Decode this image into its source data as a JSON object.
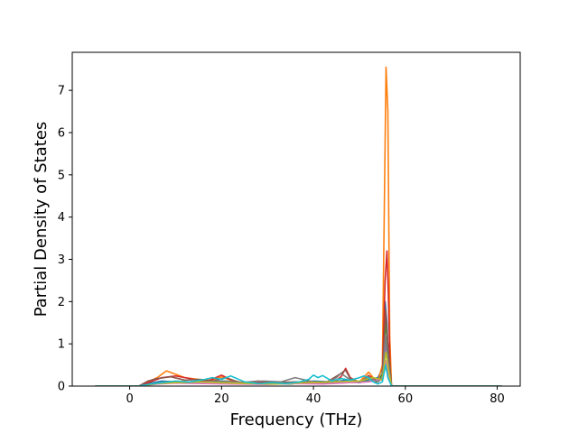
{
  "chart_data": {
    "type": "line",
    "xlabel": "Frequency (THz)",
    "ylabel": "Partial Density of States",
    "xlim": [
      -12.5,
      85
    ],
    "ylim": [
      0,
      7.9
    ],
    "x_ticks": [
      0,
      20,
      40,
      60,
      80
    ],
    "y_ticks": [
      0,
      1,
      2,
      3,
      4,
      5,
      6,
      7
    ],
    "grid": false,
    "series": [
      {
        "color": "#1f77b4",
        "x": [
          -7.5,
          2,
          4,
          7,
          10,
          14,
          18,
          21,
          25,
          30,
          35,
          40,
          44,
          47,
          50,
          52,
          54,
          55,
          55.6,
          56,
          56.4,
          57,
          60,
          81
        ],
        "y": [
          0,
          0,
          0.06,
          0.12,
          0.1,
          0.1,
          0.12,
          0.12,
          0.06,
          0.08,
          0.06,
          0.12,
          0.1,
          0.14,
          0.1,
          0.15,
          0.2,
          0.4,
          2.0,
          1.5,
          0.3,
          0,
          0,
          0
        ]
      },
      {
        "color": "#ff7f0e",
        "x": [
          -7.5,
          2,
          4,
          6,
          8,
          9,
          10,
          12,
          15,
          18,
          20,
          23,
          27,
          30,
          35,
          40,
          44,
          47,
          50,
          52,
          53,
          54,
          55,
          55.4,
          55.8,
          56.2,
          56.6,
          57,
          60,
          81
        ],
        "y": [
          0,
          0,
          0.1,
          0.2,
          0.36,
          0.32,
          0.28,
          0.2,
          0.16,
          0.14,
          0.22,
          0.1,
          0.08,
          0.08,
          0.06,
          0.08,
          0.06,
          0.1,
          0.1,
          0.33,
          0.2,
          0.1,
          0.5,
          4.0,
          7.55,
          6.5,
          1.2,
          0,
          0,
          0
        ]
      },
      {
        "color": "#2ca02c",
        "x": [
          -7.5,
          2,
          5,
          8,
          12,
          16,
          20,
          24,
          30,
          35,
          40,
          45,
          50,
          52,
          54,
          55,
          55.8,
          56.3,
          57,
          60,
          81
        ],
        "y": [
          0,
          0,
          0.05,
          0.1,
          0.08,
          0.14,
          0.1,
          0.06,
          0.06,
          0.05,
          0.1,
          0.08,
          0.1,
          0.12,
          0.1,
          0.3,
          1.5,
          0.8,
          0,
          0,
          0
        ]
      },
      {
        "color": "#d62728",
        "x": [
          -7.5,
          2,
          4,
          7,
          10,
          14,
          17,
          20,
          22,
          25,
          30,
          35,
          40,
          44,
          46,
          47,
          48,
          50,
          52,
          54,
          55,
          55.6,
          56,
          56.3,
          56.7,
          57,
          60,
          81
        ],
        "y": [
          0,
          0,
          0.08,
          0.2,
          0.24,
          0.16,
          0.12,
          0.26,
          0.15,
          0.06,
          0.1,
          0.06,
          0.08,
          0.06,
          0.22,
          0.42,
          0.2,
          0.08,
          0.25,
          0.1,
          0.2,
          2.5,
          3.2,
          2.2,
          0.3,
          0,
          0,
          0
        ]
      },
      {
        "color": "#9467bd",
        "x": [
          -7.5,
          2,
          6,
          10,
          14,
          18,
          22,
          28,
          34,
          40,
          45,
          50,
          53,
          55,
          55.8,
          56.3,
          57,
          60,
          81
        ],
        "y": [
          0,
          0,
          0.06,
          0.08,
          0.1,
          0.08,
          0.06,
          0.05,
          0.06,
          0.08,
          0.1,
          0.08,
          0.12,
          0.2,
          1.0,
          0.5,
          0,
          0,
          0
        ]
      },
      {
        "color": "#8c564b",
        "x": [
          -7.5,
          2,
          4,
          6,
          9,
          12,
          15,
          18,
          21,
          24,
          28,
          32,
          36,
          40,
          43,
          46,
          47,
          48,
          50,
          52,
          54,
          55,
          55.7,
          56.2,
          57,
          60,
          81
        ],
        "y": [
          0,
          0,
          0.12,
          0.18,
          0.22,
          0.14,
          0.16,
          0.12,
          0.2,
          0.08,
          0.12,
          0.08,
          0.1,
          0.08,
          0.1,
          0.3,
          0.38,
          0.18,
          0.1,
          0.2,
          0.1,
          0.2,
          1.8,
          1.0,
          0,
          0,
          0
        ]
      },
      {
        "color": "#e377c2",
        "x": [
          -7.5,
          2,
          6,
          10,
          16,
          22,
          30,
          36,
          42,
          48,
          52,
          55,
          55.8,
          56.3,
          57,
          60,
          81
        ],
        "y": [
          0,
          0,
          0.05,
          0.07,
          0.06,
          0.05,
          0.04,
          0.06,
          0.05,
          0.08,
          0.1,
          0.15,
          0.6,
          0.3,
          0,
          0,
          0
        ]
      },
      {
        "color": "#7f7f7f",
        "x": [
          -7.5,
          2,
          5,
          8,
          12,
          16,
          20,
          25,
          29,
          33,
          36,
          40,
          43,
          45,
          46,
          48,
          50,
          52,
          54,
          55,
          55.7,
          56.2,
          57,
          60,
          81
        ],
        "y": [
          0,
          0,
          0.06,
          0.1,
          0.08,
          0.1,
          0.12,
          0.08,
          0.12,
          0.1,
          0.2,
          0.1,
          0.08,
          0.2,
          0.3,
          0.15,
          0.1,
          0.22,
          0.1,
          0.2,
          1.2,
          0.6,
          0,
          0,
          0
        ]
      },
      {
        "color": "#bcbd22",
        "x": [
          -7.5,
          2,
          6,
          10,
          15,
          20,
          26,
          32,
          38,
          44,
          50,
          53,
          55,
          55.8,
          56.3,
          57,
          60,
          81
        ],
        "y": [
          0,
          0,
          0.06,
          0.08,
          0.1,
          0.08,
          0.06,
          0.05,
          0.08,
          0.1,
          0.12,
          0.2,
          0.15,
          0.8,
          0.4,
          0,
          0,
          0
        ]
      },
      {
        "color": "#17becf",
        "x": [
          -7.5,
          2,
          4,
          7,
          10,
          13,
          16,
          18,
          20,
          22,
          25,
          28,
          31,
          34,
          37,
          39,
          40,
          41,
          42,
          44,
          46,
          48,
          50,
          51,
          52,
          53,
          54,
          55,
          55.7,
          56.2,
          57,
          60,
          81
        ],
        "y": [
          0,
          0,
          0.04,
          0.08,
          0.12,
          0.1,
          0.15,
          0.2,
          0.16,
          0.24,
          0.1,
          0.06,
          0.08,
          0.06,
          0.1,
          0.16,
          0.26,
          0.2,
          0.25,
          0.12,
          0.18,
          0.14,
          0.2,
          0.24,
          0.2,
          0.1,
          0.05,
          0.1,
          0.5,
          0.2,
          0,
          0,
          0
        ]
      }
    ]
  }
}
